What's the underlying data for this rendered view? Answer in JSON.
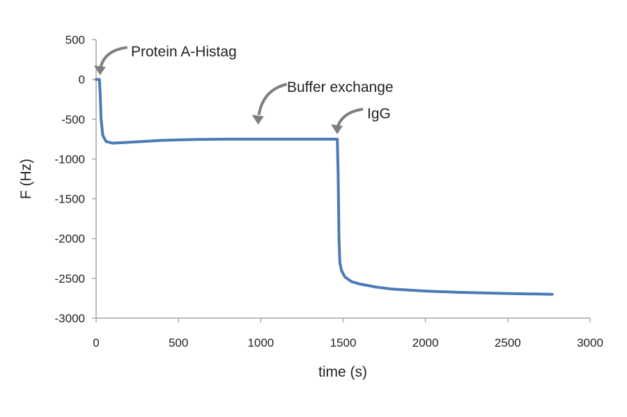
{
  "chart_data": {
    "type": "line",
    "title": "",
    "xlabel": "time (s)",
    "ylabel": "F (Hz)",
    "xlim": [
      0,
      3000
    ],
    "ylim": [
      -3000,
      500
    ],
    "xticks": [
      0,
      500,
      1000,
      1500,
      2000,
      2500,
      3000
    ],
    "yticks": [
      500,
      0,
      -500,
      -1000,
      -1500,
      -2000,
      -2500,
      -3000
    ],
    "grid": false,
    "series_color": "#4a7ab8",
    "annotation_color": "#7f7f7f",
    "series": [
      {
        "name": "F",
        "x": [
          0,
          20,
          25,
          30,
          40,
          60,
          100,
          200,
          400,
          600,
          800,
          1000,
          1200,
          1400,
          1465,
          1470,
          1475,
          1480,
          1490,
          1510,
          1550,
          1600,
          1700,
          1800,
          2000,
          2200,
          2500,
          2770
        ],
        "y": [
          0,
          0,
          -200,
          -500,
          -700,
          -780,
          -800,
          -790,
          -765,
          -755,
          -750,
          -750,
          -750,
          -750,
          -750,
          -1200,
          -2000,
          -2300,
          -2400,
          -2480,
          -2540,
          -2570,
          -2610,
          -2635,
          -2660,
          -2675,
          -2690,
          -2700
        ]
      }
    ],
    "annotations": [
      {
        "text": "Protein A-Histag",
        "x": 20,
        "y": 0
      },
      {
        "text": "Buffer exchange",
        "x": 980,
        "y": -620
      },
      {
        "text": "IgG",
        "x": 1460,
        "y": -740
      }
    ]
  }
}
